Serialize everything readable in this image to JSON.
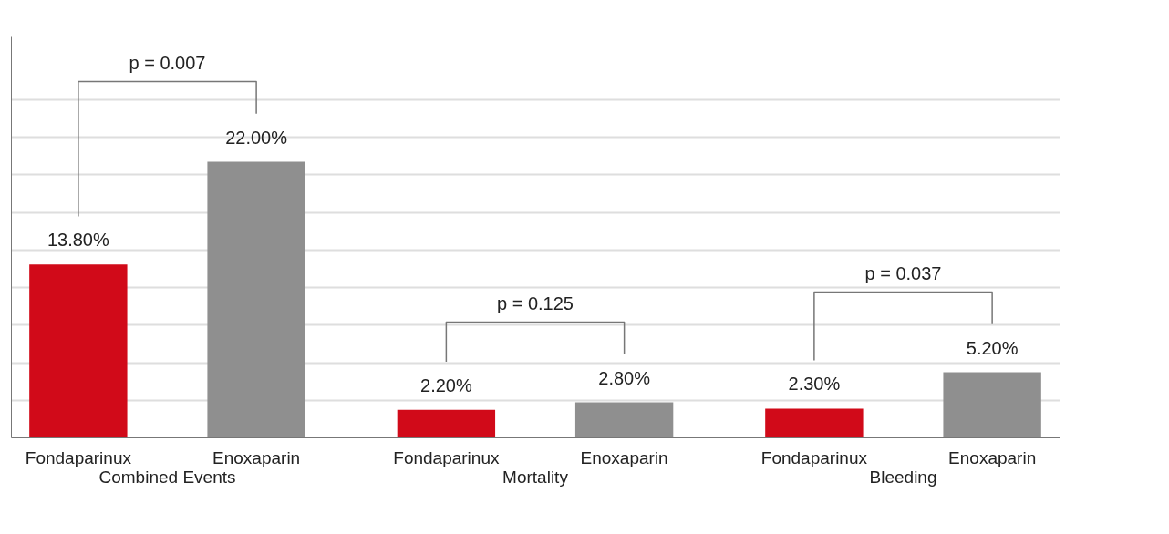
{
  "chart_data": {
    "type": "bar",
    "categories": [
      "Combined Events",
      "Mortality",
      "Bleeding"
    ],
    "series": [
      {
        "name": "Fondaparinux",
        "color": "#d10a19",
        "values": [
          13.8,
          2.2,
          2.3
        ],
        "value_labels": [
          "13.80%",
          "2.20%",
          "2.30%"
        ]
      },
      {
        "name": "Enoxaparin",
        "color": "#8f8f8f",
        "values": [
          22.0,
          2.8,
          5.2
        ],
        "value_labels": [
          "22.00%",
          "2.80%",
          "5.20%"
        ]
      }
    ],
    "ylim": [
      0,
      32
    ],
    "yticks": [
      {
        "value": 3,
        "label": null
      },
      {
        "value": 6,
        "label": null
      },
      {
        "value": 9,
        "label": null
      },
      {
        "value": 12,
        "label": null
      },
      {
        "value": 15,
        "label": null
      },
      {
        "value": 18,
        "label": null
      },
      {
        "value": 21,
        "label": null
      },
      {
        "value": 24,
        "label": null
      },
      {
        "value": 27,
        "label": null
      }
    ],
    "grid": "y",
    "legend": false,
    "annotations": [
      "p = 0.007",
      "p = 0.125",
      "p = 0.037"
    ]
  }
}
